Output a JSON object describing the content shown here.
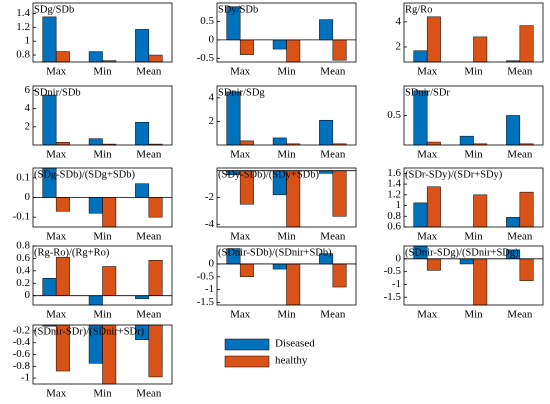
{
  "chart_data": [
    {
      "type": "bar",
      "title": "SDg/SDb",
      "categories": [
        "Max",
        "Min",
        "Mean"
      ],
      "series": [
        {
          "name": "Diseased",
          "color": "#0072BD",
          "values": [
            1.35,
            0.85,
            1.17
          ]
        },
        {
          "name": "healthy",
          "color": "#D95319",
          "values": [
            0.85,
            0.72,
            0.8
          ]
        }
      ],
      "ylim": [
        0.7,
        1.55
      ],
      "yticks": [
        0.8,
        1,
        1.2,
        1.4
      ]
    },
    {
      "type": "bar",
      "title": "SDy/SDb",
      "categories": [
        "Max",
        "Min",
        "Mean"
      ],
      "series": [
        {
          "name": "Diseased",
          "color": "#0072BD",
          "values": [
            0.9,
            -0.25,
            0.55
          ]
        },
        {
          "name": "healthy",
          "color": "#D95319",
          "values": [
            -0.4,
            -0.6,
            -0.55
          ]
        }
      ],
      "ylim": [
        -0.6,
        1
      ],
      "yticks": [
        -0.5,
        0,
        0.5
      ]
    },
    {
      "type": "bar",
      "title": "Rg/Ro",
      "categories": [
        "Max",
        "Min",
        "Mean"
      ],
      "series": [
        {
          "name": "Diseased",
          "color": "#0072BD",
          "values": [
            1.7,
            0.8,
            0.9
          ]
        },
        {
          "name": "healthy",
          "color": "#D95319",
          "values": [
            4.4,
            2.8,
            3.7
          ]
        }
      ],
      "ylim": [
        0.8,
        5.5
      ],
      "yticks": [
        2,
        4
      ]
    },
    {
      "type": "bar",
      "title": "SDnir/SDb",
      "categories": [
        "Max",
        "Min",
        "Mean"
      ],
      "series": [
        {
          "name": "Diseased",
          "color": "#0072BD",
          "values": [
            5.5,
            0.7,
            2.5
          ]
        },
        {
          "name": "healthy",
          "color": "#D95319",
          "values": [
            0.3,
            0.1,
            0.1
          ]
        }
      ],
      "ylim": [
        0,
        6.5
      ],
      "yticks": [
        2,
        4,
        6
      ]
    },
    {
      "type": "bar",
      "title": "SDnir/SDg",
      "categories": [
        "Max",
        "Min",
        "Mean"
      ],
      "series": [
        {
          "name": "Diseased",
          "color": "#0072BD",
          "values": [
            4.5,
            0.6,
            2.1
          ]
        },
        {
          "name": "healthy",
          "color": "#D95319",
          "values": [
            0.35,
            0.1,
            0.1
          ]
        }
      ],
      "ylim": [
        0,
        5
      ],
      "yticks": [
        2,
        4
      ]
    },
    {
      "type": "bar",
      "title": "SDnir/SDr",
      "categories": [
        "Max",
        "Min",
        "Mean"
      ],
      "series": [
        {
          "name": "Diseased",
          "color": "#0072BD",
          "values": [
            0.92,
            0.15,
            0.5
          ]
        },
        {
          "name": "healthy",
          "color": "#D95319",
          "values": [
            0.05,
            0.02,
            0.02
          ]
        }
      ],
      "ylim": [
        0,
        1
      ],
      "yticks": [
        0.5
      ]
    },
    {
      "type": "bar",
      "title": "(SDg-SDb)/(SDg+SDb)",
      "categories": [
        "Max",
        "Min",
        "Mean"
      ],
      "series": [
        {
          "name": "Diseased",
          "color": "#0072BD",
          "values": [
            0.15,
            -0.08,
            0.07
          ]
        },
        {
          "name": "healthy",
          "color": "#D95319",
          "values": [
            -0.07,
            -0.15,
            -0.1
          ]
        }
      ],
      "ylim": [
        -0.15,
        0.15
      ],
      "yticks": [
        -0.1,
        0,
        0.1
      ]
    },
    {
      "type": "bar",
      "title": "(SDy-SDb)/(SDy+SDb)",
      "categories": [
        "Max",
        "Min",
        "Mean"
      ],
      "series": [
        {
          "name": "Diseased",
          "color": "#0072BD",
          "values": [
            -0.3,
            -1.8,
            -0.2
          ]
        },
        {
          "name": "healthy",
          "color": "#D95319",
          "values": [
            -2.5,
            -4.2,
            -3.4
          ]
        }
      ],
      "ylim": [
        -4.2,
        0.2
      ],
      "yticks": [
        -4,
        -2
      ]
    },
    {
      "type": "bar",
      "title": "(SDr-SDy)/(SDr+SDy)",
      "categories": [
        "Max",
        "Min",
        "Mean"
      ],
      "series": [
        {
          "name": "Diseased",
          "color": "#0072BD",
          "values": [
            1.05,
            0.6,
            0.78
          ]
        },
        {
          "name": "healthy",
          "color": "#D95319",
          "values": [
            1.35,
            1.2,
            1.25
          ]
        }
      ],
      "ylim": [
        0.6,
        1.7
      ],
      "yticks": [
        0.6,
        0.8,
        1,
        1.2,
        1.4,
        1.6
      ]
    },
    {
      "type": "bar",
      "title": "(Rg-Ro)/(Rg+Ro)",
      "categories": [
        "Max",
        "Min",
        "Mean"
      ],
      "series": [
        {
          "name": "Diseased",
          "color": "#0072BD",
          "values": [
            0.28,
            -0.15,
            -0.05
          ]
        },
        {
          "name": "healthy",
          "color": "#D95319",
          "values": [
            0.62,
            0.47,
            0.57
          ]
        }
      ],
      "ylim": [
        -0.15,
        0.8
      ],
      "yticks": [
        0,
        0.2,
        0.4,
        0.6,
        0.8
      ]
    },
    {
      "type": "bar",
      "title": "(SDnir-SDb)/(SDnir+SDb)",
      "categories": [
        "Max",
        "Min",
        "Mean"
      ],
      "series": [
        {
          "name": "Diseased",
          "color": "#0072BD",
          "values": [
            0.6,
            -0.2,
            0.4
          ]
        },
        {
          "name": "healthy",
          "color": "#D95319",
          "values": [
            -0.5,
            -1.6,
            -0.9
          ]
        }
      ],
      "ylim": [
        -1.6,
        0.7
      ],
      "yticks": [
        -1.5,
        -1,
        -0.5,
        0
      ]
    },
    {
      "type": "bar",
      "title": "(SDnir-SDg)/(SDnir+SDg)",
      "categories": [
        "Max",
        "Min",
        "Mean"
      ],
      "series": [
        {
          "name": "Diseased",
          "color": "#0072BD",
          "values": [
            0.5,
            -0.2,
            0.35
          ]
        },
        {
          "name": "healthy",
          "color": "#D95319",
          "values": [
            -0.45,
            -1.8,
            -0.85
          ]
        }
      ],
      "ylim": [
        -1.8,
        0.5
      ],
      "yticks": [
        -1.5,
        -1,
        -0.5,
        0
      ]
    },
    {
      "type": "bar",
      "title": "(SDnir-SDr)/(SDnir+SDr)",
      "categories": [
        "Max",
        "Min",
        "Mean"
      ],
      "series": [
        {
          "name": "Diseased",
          "color": "#0072BD",
          "values": [
            -0.12,
            -0.75,
            -0.35
          ]
        },
        {
          "name": "healthy",
          "color": "#D95319",
          "values": [
            -0.88,
            -1.1,
            -0.98
          ]
        }
      ],
      "ylim": [
        -1.1,
        -0.1
      ],
      "yticks": [
        -1,
        -0.8,
        -0.6,
        -0.4,
        -0.2
      ]
    }
  ]
}
